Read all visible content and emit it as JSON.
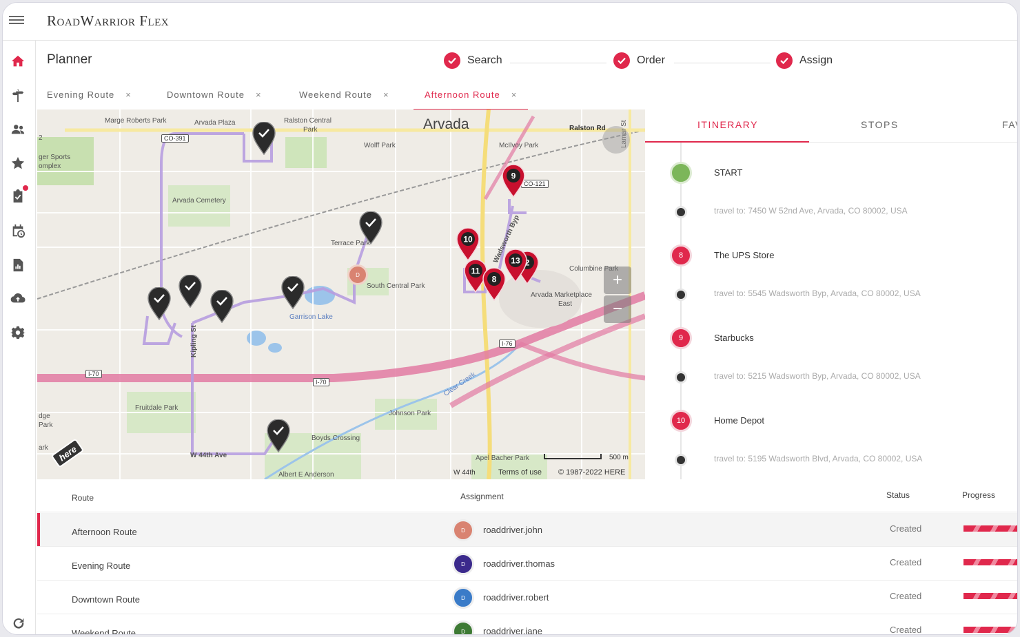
{
  "app": {
    "brand": "RoadWarrior Flex"
  },
  "planner": {
    "title": "Planner",
    "steps": [
      {
        "label": "Search",
        "done": true
      },
      {
        "label": "Order",
        "done": true
      },
      {
        "label": "Assign",
        "done": true
      }
    ]
  },
  "route_tabs": [
    {
      "label": "Evening Route",
      "close": "×"
    },
    {
      "label": "Downtown Route",
      "close": "×"
    },
    {
      "label": "Weekend Route",
      "close": "×"
    },
    {
      "label": "Afternoon Route",
      "close": "×",
      "active": true
    }
  ],
  "sidebar": {
    "items": [
      "home-icon",
      "signpost-icon",
      "people-icon",
      "star-icon",
      "clipboard-check-icon",
      "calendar-clock-icon",
      "report-icon",
      "cloud-upload-icon",
      "gear-icon",
      "refresh-icon"
    ]
  },
  "map": {
    "city_label": "Arvada",
    "labels": {
      "marge": "Marge Roberts Park",
      "arvada_plaza": "Arvada Plaza",
      "ralston_central": "Ralston Central",
      "park": "Park",
      "ralston_rd": "Ralston Rd",
      "wolff": "Wolff Park",
      "mcilvoy": "McIlvoy Park",
      "lamar": "Lamar St",
      "sports1": "ger Sports",
      "sports2": "omplex",
      "cemetery": "Arvada Cemetery",
      "terrace": "Terrace Park",
      "south_central": "South Central Park",
      "wadsworth": "Wadsworth Byp",
      "columbine": "Columbine Park",
      "marketplace1": "Arvada Marketplace",
      "marketplace2": "East",
      "garrison": "Garrison Lake",
      "kipling": "Kipling St",
      "fruitdale": "Fruitdale Park",
      "johnson": "Johnson Park",
      "clear_creek": "Clear Creek",
      "boyds": "Boyds Crossing",
      "w44": "W 44th Ave",
      "albert": "Albert E Anderson",
      "apel": "Apel Bacher Park",
      "edge1": "dge",
      "edge2": "Park",
      "edge3": "ark",
      "edge4": "2"
    },
    "shields": {
      "co391": "CO-391",
      "co121": "CO-121",
      "i76": "I-76",
      "i70a": "I-70",
      "i70b": "I-70"
    },
    "numbered_pins": [
      "9",
      "10",
      "11",
      "13",
      "2",
      "8"
    ],
    "depot_label": "D",
    "zoom_in": "+",
    "zoom_out": "−",
    "scale": "500 m",
    "footer_street": "W 44th",
    "terms": "Terms of use",
    "copyright": "© 1987-2022 HERE",
    "logo": "here",
    "colors": {
      "route": "#b79ee0",
      "pin_red": "#c8102e",
      "pin_dark": "#2b2b2b",
      "highway": "#e27ba2"
    }
  },
  "itinerary": {
    "tabs": [
      "ITINERARY",
      "STOPS",
      "FAV"
    ],
    "items": [
      {
        "type": "start",
        "label": "START"
      },
      {
        "type": "travel",
        "text": "travel to: 7450 W 52nd Ave, Arvada, CO 80002, USA"
      },
      {
        "type": "stop",
        "num": "8",
        "label": "The UPS Store"
      },
      {
        "type": "travel",
        "text": "travel to: 5545 Wadsworth Byp, Arvada, CO 80002, USA"
      },
      {
        "type": "stop",
        "num": "9",
        "label": "Starbucks"
      },
      {
        "type": "travel",
        "text": "travel to: 5215 Wadsworth Byp, Arvada, CO 80002, USA"
      },
      {
        "type": "stop",
        "num": "10",
        "label": "Home Depot"
      },
      {
        "type": "travel",
        "text": "travel to: 5195 Wadsworth Blvd, Arvada, CO 80002, USA"
      }
    ]
  },
  "table": {
    "headers": {
      "route": "Route",
      "assignment": "Assignment",
      "status": "Status",
      "progress": "Progress"
    },
    "rows": [
      {
        "route": "Afternoon Route",
        "initial": "D",
        "driver": "roaddriver.john",
        "status": "Created",
        "progress": 1.0,
        "color": "#d98371",
        "selected": true
      },
      {
        "route": "Evening Route",
        "initial": "D",
        "driver": "roaddriver.thomas",
        "status": "Created",
        "progress": 1.0,
        "color": "#3b2a8c"
      },
      {
        "route": "Downtown Route",
        "initial": "D",
        "driver": "roaddriver.robert",
        "status": "Created",
        "progress": 1.0,
        "color": "#3a7bc8"
      },
      {
        "route": "Weekend Route",
        "initial": "D",
        "driver": "roaddriver.jane",
        "status": "Created",
        "progress": 1.0,
        "color": "#3d7a34"
      }
    ]
  }
}
